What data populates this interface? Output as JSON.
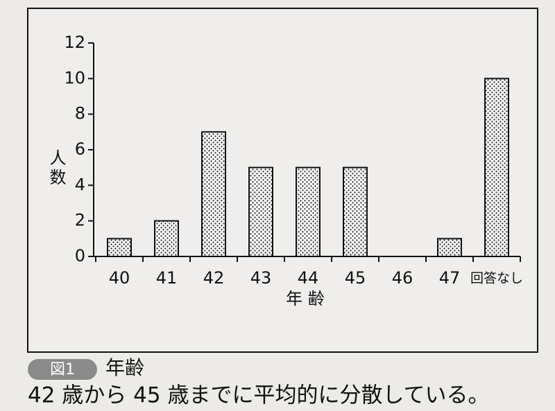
{
  "chart_data": {
    "type": "bar",
    "categories": [
      "40",
      "41",
      "42",
      "43",
      "44",
      "45",
      "46",
      "47",
      "回答なし"
    ],
    "values": [
      1,
      2,
      7,
      5,
      5,
      5,
      0,
      1,
      10
    ],
    "ylim": [
      0,
      12
    ],
    "yticks": [
      0,
      2,
      4,
      6,
      8,
      10,
      12
    ],
    "y_label": "人数",
    "x_label": "年 齢",
    "color": "#ffffff",
    "grid": false
  },
  "figure_label": "図1",
  "caption": "年齢",
  "note": "42 歳から 45 歳までに平均的に分散している。"
}
